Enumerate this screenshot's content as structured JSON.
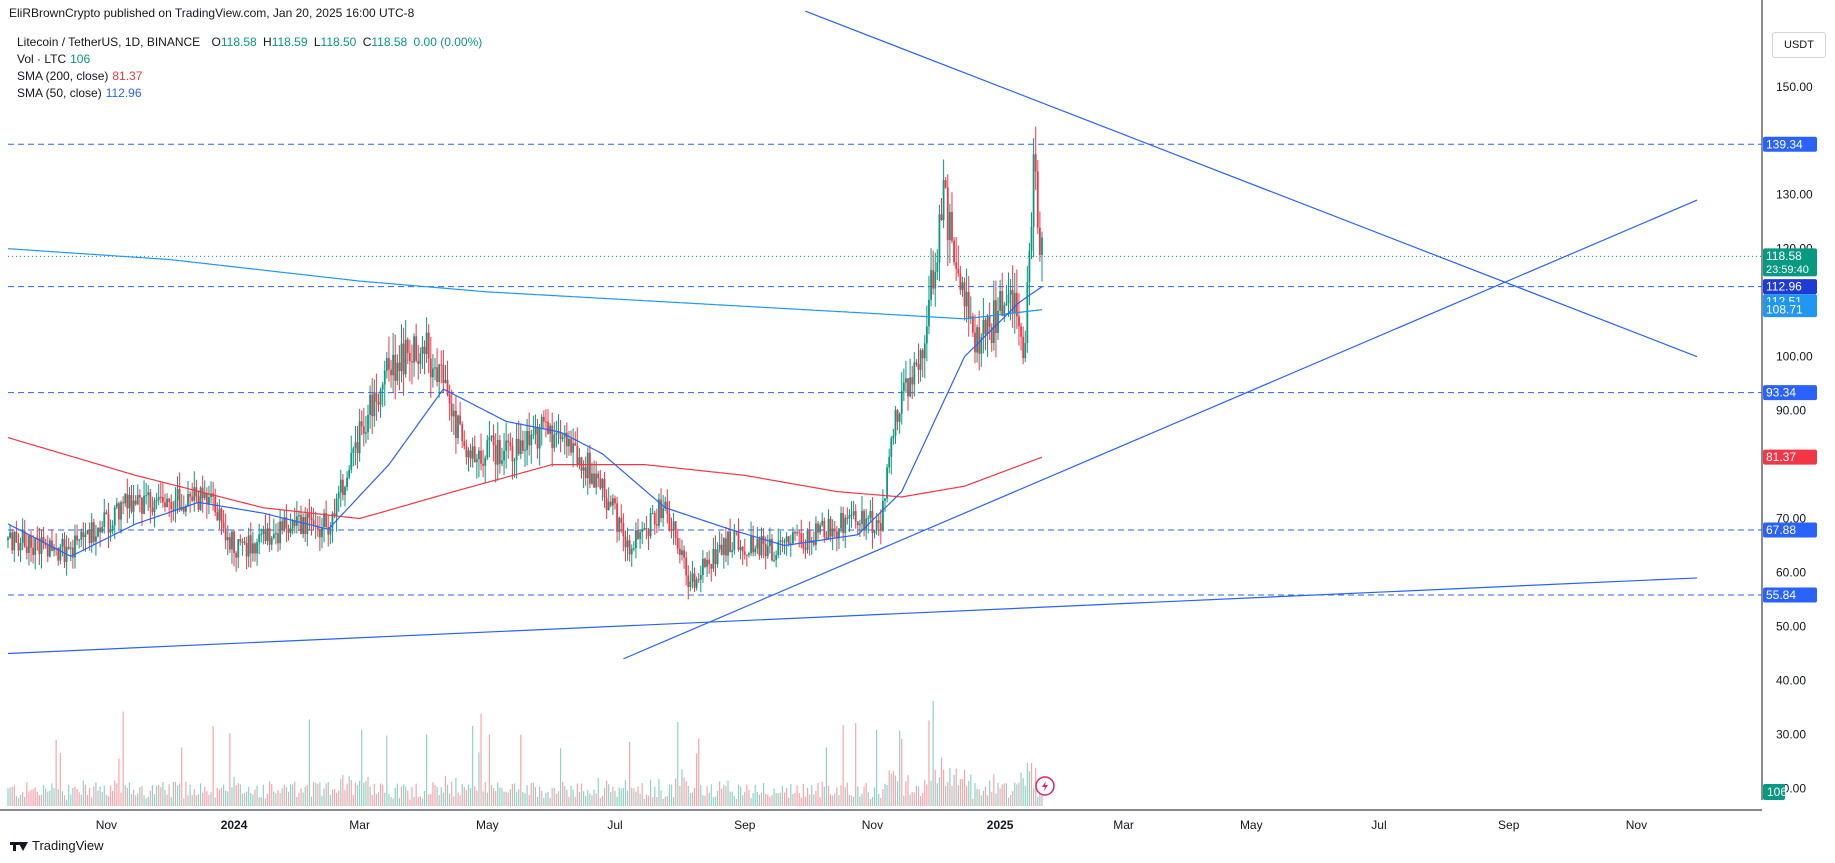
{
  "header": {
    "published": "EliRBrownCrypto published on TradingView.com, Jan 20, 2025 16:00 UTC-8"
  },
  "legend": {
    "symbol": "Litecoin / TetherUS, 1D, BINANCE",
    "o_label": "O",
    "o": "118.58",
    "h_label": "H",
    "h": "118.59",
    "l_label": "L",
    "l": "118.50",
    "c_label": "C",
    "c": "118.58",
    "change": "0.00 (0.00%)",
    "vol_label": "Vol · LTC",
    "vol": "106",
    "sma200_label": "SMA (200, close)",
    "sma200": "81.37",
    "sma50_label": "SMA (50, close)",
    "sma50": "112.96"
  },
  "currency": "USDT",
  "footer": {
    "brand": "TradingView"
  },
  "colors": {
    "up": "#089981",
    "down": "#f23645",
    "sma200": "#f23645",
    "sma50": "#2962ff",
    "trendline": "#2962ff",
    "long_ma": "#2196f3",
    "level": "#2962ff",
    "price_line": "#089981"
  },
  "chart_data": {
    "type": "candlestick",
    "title": "Litecoin / TetherUS, 1D, BINANCE",
    "y_axis_ticks": [
      "150.00",
      "130.00",
      "120.00",
      "100.00",
      "90.00",
      "70.00",
      "60.00",
      "50.00",
      "40.00",
      "30.00",
      "20.00"
    ],
    "x_axis_ticks": [
      "Nov",
      "2024",
      "Mar",
      "May",
      "Jul",
      "Sep",
      "Nov",
      "2025",
      "Mar",
      "May",
      "Jul",
      "Sep",
      "Nov"
    ],
    "ylim": [
      16,
      162
    ],
    "grid": false,
    "last_close": 118.58,
    "countdown": "23:59:40",
    "horizontal_levels": [
      139.34,
      112.96,
      93.34,
      67.88,
      55.84
    ],
    "price_labels": [
      {
        "label": "139.34",
        "value": 139.34,
        "style": "level"
      },
      {
        "label": "118.58",
        "value": 118.58,
        "style": "price"
      },
      {
        "label": "112.96",
        "value": 112.96,
        "style": "sma50"
      },
      {
        "label": "112.51",
        "value": 112.51,
        "style": "ma"
      },
      {
        "label": "108.71",
        "value": 108.71,
        "style": "ma"
      },
      {
        "label": "93.34",
        "value": 93.34,
        "style": "level"
      },
      {
        "label": "81.37",
        "value": 81.37,
        "style": "sma200"
      },
      {
        "label": "67.88",
        "value": 67.88,
        "style": "level"
      },
      {
        "label": "55.84",
        "value": 55.84,
        "style": "level"
      }
    ],
    "volume_label": "106",
    "price_anchors": [
      [
        "2023-09-15",
        66
      ],
      [
        "2023-10-15",
        64
      ],
      [
        "2023-11-10",
        72
      ],
      [
        "2023-12-05",
        74
      ],
      [
        "2023-12-20",
        73
      ],
      [
        "2024-01-03",
        64
      ],
      [
        "2024-01-25",
        68
      ],
      [
        "2024-02-15",
        69
      ],
      [
        "2024-03-05",
        90
      ],
      [
        "2024-03-15",
        98
      ],
      [
        "2024-04-01",
        102
      ],
      [
        "2024-04-12",
        93
      ],
      [
        "2024-04-20",
        82
      ],
      [
        "2024-05-10",
        83
      ],
      [
        "2024-05-28",
        86
      ],
      [
        "2024-06-10",
        84
      ],
      [
        "2024-06-25",
        76
      ],
      [
        "2024-07-08",
        64
      ],
      [
        "2024-07-25",
        73
      ],
      [
        "2024-08-05",
        58
      ],
      [
        "2024-08-25",
        66
      ],
      [
        "2024-09-15",
        64
      ],
      [
        "2024-10-05",
        67
      ],
      [
        "2024-10-25",
        70
      ],
      [
        "2024-11-05",
        69
      ],
      [
        "2024-11-12",
        88
      ],
      [
        "2024-11-25",
        101
      ],
      [
        "2024-12-05",
        130
      ],
      [
        "2024-12-10",
        118
      ],
      [
        "2024-12-20",
        102
      ],
      [
        "2024-12-26",
        104
      ],
      [
        "2025-01-06",
        114
      ],
      [
        "2025-01-12",
        99
      ],
      [
        "2025-01-17",
        135
      ],
      [
        "2025-01-21",
        118.58
      ]
    ],
    "sma50_anchors": [
      [
        "2023-09-15",
        69
      ],
      [
        "2023-10-15",
        63
      ],
      [
        "2023-11-15",
        69
      ],
      [
        "2023-12-15",
        73
      ],
      [
        "2024-01-15",
        71
      ],
      [
        "2024-02-15",
        68
      ],
      [
        "2024-03-15",
        80
      ],
      [
        "2024-04-10",
        94
      ],
      [
        "2024-05-10",
        88
      ],
      [
        "2024-06-05",
        86
      ],
      [
        "2024-06-25",
        82
      ],
      [
        "2024-07-25",
        72
      ],
      [
        "2024-08-25",
        68
      ],
      [
        "2024-09-20",
        65
      ],
      [
        "2024-10-25",
        67
      ],
      [
        "2024-11-15",
        75
      ],
      [
        "2024-12-15",
        100
      ],
      [
        "2025-01-10",
        110
      ],
      [
        "2025-01-21",
        112.96
      ]
    ],
    "sma200_anchors": [
      [
        "2023-09-15",
        85
      ],
      [
        "2023-11-15",
        78
      ],
      [
        "2024-01-15",
        72
      ],
      [
        "2024-03-01",
        70
      ],
      [
        "2024-04-15",
        75
      ],
      [
        "2024-06-01",
        80
      ],
      [
        "2024-07-15",
        80
      ],
      [
        "2024-09-01",
        78
      ],
      [
        "2024-10-15",
        75
      ],
      [
        "2024-11-15",
        74
      ],
      [
        "2024-12-15",
        76
      ],
      [
        "2025-01-21",
        81.37
      ]
    ],
    "long_ma_anchors": [
      [
        "2023-09-15",
        120
      ],
      [
        "2023-12-01",
        118
      ],
      [
        "2024-03-01",
        114
      ],
      [
        "2024-05-01",
        112
      ],
      [
        "2024-08-01",
        110
      ],
      [
        "2024-11-01",
        108
      ],
      [
        "2024-12-15",
        107
      ],
      [
        "2025-01-21",
        108.71
      ]
    ],
    "trendlines": [
      {
        "from": [
          "2024-07-05",
          44
        ],
        "to": [
          "2025-11-30",
          129
        ]
      },
      {
        "from": [
          "2024-09-30",
          164
        ],
        "to": [
          "2025-11-30",
          100
        ]
      },
      {
        "from": [
          "2023-09-15",
          45
        ],
        "to": [
          "2025-11-30",
          59
        ]
      }
    ]
  }
}
